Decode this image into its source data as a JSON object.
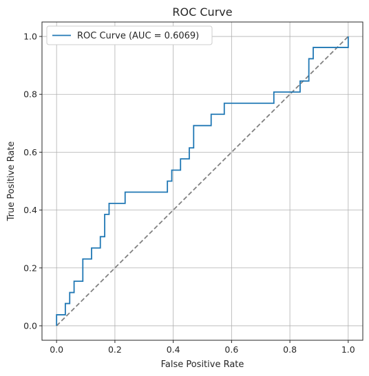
{
  "chart_data": {
    "type": "line",
    "title": "ROC Curve",
    "xlabel": "False Positive Rate",
    "ylabel": "True Positive Rate",
    "xlim": [
      -0.05,
      1.05
    ],
    "ylim": [
      -0.05,
      1.05
    ],
    "x_ticks": [
      "0.0",
      "0.2",
      "0.4",
      "0.6",
      "0.8",
      "1.0"
    ],
    "y_ticks": [
      "0.0",
      "0.2",
      "0.4",
      "0.6",
      "0.8",
      "1.0"
    ],
    "x_tick_values": [
      0,
      0.2,
      0.4,
      0.6,
      0.8,
      1.0
    ],
    "y_tick_values": [
      0,
      0.2,
      0.4,
      0.6,
      0.8,
      1.0
    ],
    "grid": true,
    "legend_position": "top-left",
    "series": [
      {
        "name": "ROC Curve (AUC = 0.6069)",
        "color": "#1f77b4",
        "style": "solid",
        "step": true,
        "points": [
          [
            0.0,
            0.0
          ],
          [
            0.0,
            0.038
          ],
          [
            0.03,
            0.038
          ],
          [
            0.03,
            0.077
          ],
          [
            0.045,
            0.077
          ],
          [
            0.045,
            0.115
          ],
          [
            0.06,
            0.115
          ],
          [
            0.06,
            0.154
          ],
          [
            0.09,
            0.154
          ],
          [
            0.09,
            0.231
          ],
          [
            0.12,
            0.231
          ],
          [
            0.12,
            0.269
          ],
          [
            0.15,
            0.269
          ],
          [
            0.15,
            0.308
          ],
          [
            0.165,
            0.308
          ],
          [
            0.165,
            0.385
          ],
          [
            0.18,
            0.385
          ],
          [
            0.18,
            0.423
          ],
          [
            0.235,
            0.423
          ],
          [
            0.235,
            0.462
          ],
          [
            0.38,
            0.462
          ],
          [
            0.38,
            0.5
          ],
          [
            0.395,
            0.5
          ],
          [
            0.395,
            0.538
          ],
          [
            0.425,
            0.538
          ],
          [
            0.425,
            0.577
          ],
          [
            0.455,
            0.577
          ],
          [
            0.455,
            0.615
          ],
          [
            0.47,
            0.615
          ],
          [
            0.47,
            0.692
          ],
          [
            0.53,
            0.692
          ],
          [
            0.53,
            0.731
          ],
          [
            0.575,
            0.731
          ],
          [
            0.575,
            0.769
          ],
          [
            0.745,
            0.769
          ],
          [
            0.745,
            0.808
          ],
          [
            0.835,
            0.808
          ],
          [
            0.835,
            0.846
          ],
          [
            0.865,
            0.846
          ],
          [
            0.865,
            0.923
          ],
          [
            0.88,
            0.923
          ],
          [
            0.88,
            0.962
          ],
          [
            1.0,
            0.962
          ],
          [
            1.0,
            1.0
          ]
        ]
      },
      {
        "name": "",
        "color": "#808080",
        "style": "dashed",
        "step": false,
        "points": [
          [
            0,
            0
          ],
          [
            1,
            1
          ]
        ]
      }
    ]
  }
}
